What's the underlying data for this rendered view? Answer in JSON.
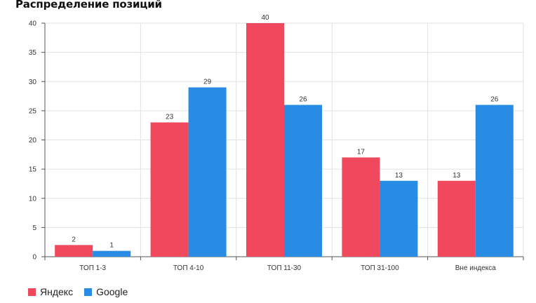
{
  "chart_data": {
    "type": "bar",
    "title": "Распределение позиций",
    "categories": [
      "ТОП 1-3",
      "ТОП 4-10",
      "ТОП 11-30",
      "ТОП 31-100",
      "Вне индекса"
    ],
    "series": [
      {
        "name": "Яндекс",
        "color": "#f0485c",
        "values": [
          2,
          23,
          40,
          17,
          13
        ]
      },
      {
        "name": "Google",
        "color": "#288ce4",
        "values": [
          1,
          29,
          26,
          13,
          26
        ]
      }
    ],
    "ylim": [
      0,
      40
    ],
    "yticks": [
      0,
      5,
      10,
      15,
      20,
      25,
      30,
      35,
      40
    ],
    "grid": true,
    "legend": "bottom-left"
  }
}
